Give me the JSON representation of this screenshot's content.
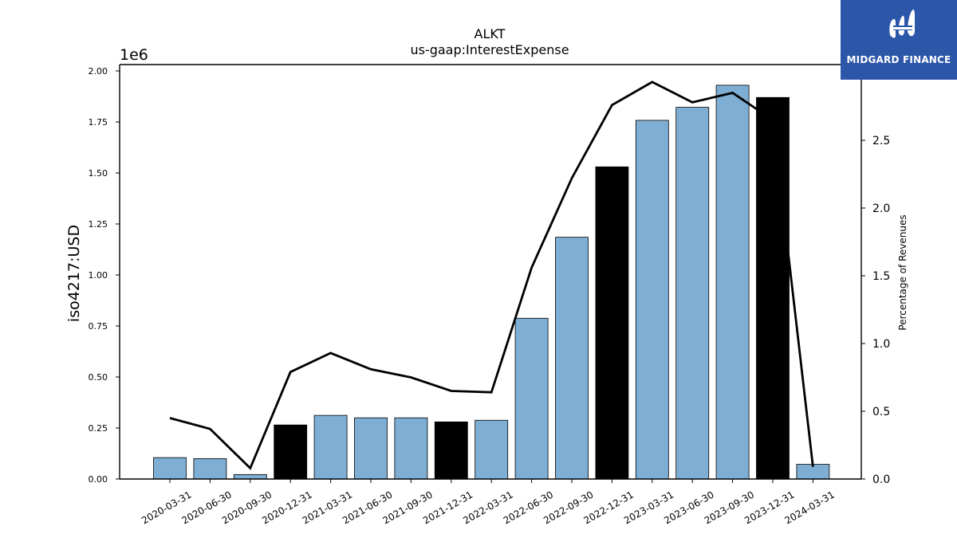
{
  "chart_data": {
    "type": "bar",
    "title": "ALKT",
    "subtitle": "us-gaap:InterestExpense",
    "ylabel": "iso4217:USD",
    "y_offset_label": "1e6",
    "y2label": "Percentage of Revenues",
    "categories": [
      "2020-03-31",
      "2020-06-30",
      "2020-09-30",
      "2020-12-31",
      "2021-03-31",
      "2021-06-30",
      "2021-09-30",
      "2021-12-31",
      "2022-03-31",
      "2022-06-30",
      "2022-09-30",
      "2022-12-31",
      "2023-03-31",
      "2023-06-30",
      "2023-09-30",
      "2023-12-31",
      "2024-03-31"
    ],
    "values": [
      105000,
      100000,
      22000,
      265000,
      312000,
      300000,
      300000,
      280000,
      288000,
      788000,
      1185000,
      1530000,
      1758000,
      1822000,
      1930000,
      1870000,
      72000
    ],
    "bar_colors": [
      "#7eaed3",
      "#7eaed3",
      "#7eaed3",
      "#000000",
      "#7eaed3",
      "#7eaed3",
      "#7eaed3",
      "#000000",
      "#7eaed3",
      "#7eaed3",
      "#7eaed3",
      "#000000",
      "#7eaed3",
      "#7eaed3",
      "#7eaed3",
      "#000000",
      "#7eaed3"
    ],
    "line_values": [
      0.45,
      0.37,
      0.08,
      0.79,
      0.93,
      0.81,
      0.75,
      0.65,
      0.64,
      1.56,
      2.22,
      2.76,
      2.93,
      2.78,
      2.85,
      2.65,
      0.09
    ],
    "ylim": [
      0,
      2000000
    ],
    "y2lim": [
      0,
      3.0
    ],
    "yticks": [
      0,
      250000,
      500000,
      750000,
      1000000,
      1250000,
      1500000,
      1750000,
      2000000
    ],
    "yticklabels": [
      "0.00",
      "0.25",
      "0.50",
      "0.75",
      "1.00",
      "1.25",
      "1.50",
      "1.75",
      "2.00"
    ],
    "y2ticks": [
      0,
      0.5,
      1.0,
      1.5,
      2.0,
      2.5
    ],
    "y2ticklabels": [
      "0.0",
      "0.5",
      "1.0",
      "1.5",
      "2.0",
      "2.5"
    ],
    "grid": false,
    "colors": {
      "bar": "#7eaed3",
      "bar_highlight": "#000000",
      "line": "#000000"
    }
  },
  "logo": {
    "text": "MIDGARD FINANCE",
    "background": "#2c56a8"
  }
}
